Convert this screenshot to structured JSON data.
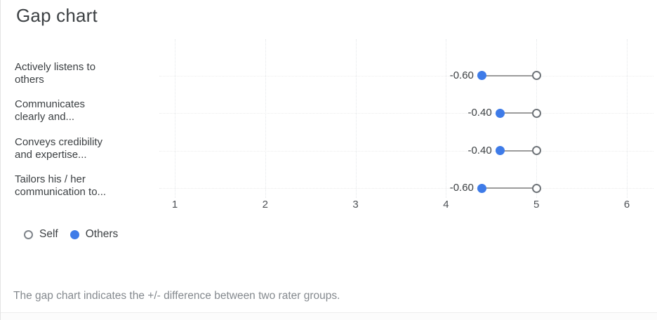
{
  "page": {
    "title": "Gap chart",
    "footer": "The gap chart indicates the +/- difference between two rater groups."
  },
  "legend": {
    "items": [
      {
        "name": "Self",
        "marker": "open-circle-icon"
      },
      {
        "name": "Others",
        "marker": "filled-circle-icon"
      }
    ]
  },
  "colors": {
    "others_fill": "#3e7be8",
    "self_ring": "#6f7479",
    "connector": "#9b9b9b",
    "title_text": "#3c4043",
    "tick_text": "#4d5156",
    "footer_text": "#84898e"
  },
  "chart_data": {
    "type": "dumbbell",
    "title": "Gap chart",
    "categories": [
      "Actively listens to others",
      "Communicates clearly and...",
      "Conveys credibility and expertise...",
      "Tailors his / her communication to..."
    ],
    "category_label_lines": [
      [
        "Actively listens to",
        "others"
      ],
      [
        "Communicates",
        "clearly and..."
      ],
      [
        "Conveys credibility",
        "and expertise..."
      ],
      [
        "Tailors his / her",
        "communication to..."
      ]
    ],
    "series": [
      {
        "name": "Self",
        "values": [
          5.0,
          5.0,
          5.0,
          5.0
        ]
      },
      {
        "name": "Others",
        "values": [
          4.4,
          4.6,
          4.6,
          4.4
        ]
      }
    ],
    "gap_labels": [
      "-0.60",
      "-0.40",
      "-0.40",
      "-0.60"
    ],
    "x_ticks": [
      1,
      2,
      3,
      4,
      5,
      6
    ],
    "xlim": [
      0.5,
      6.35
    ],
    "grid": "dotted",
    "legend_position": "bottom-left"
  }
}
